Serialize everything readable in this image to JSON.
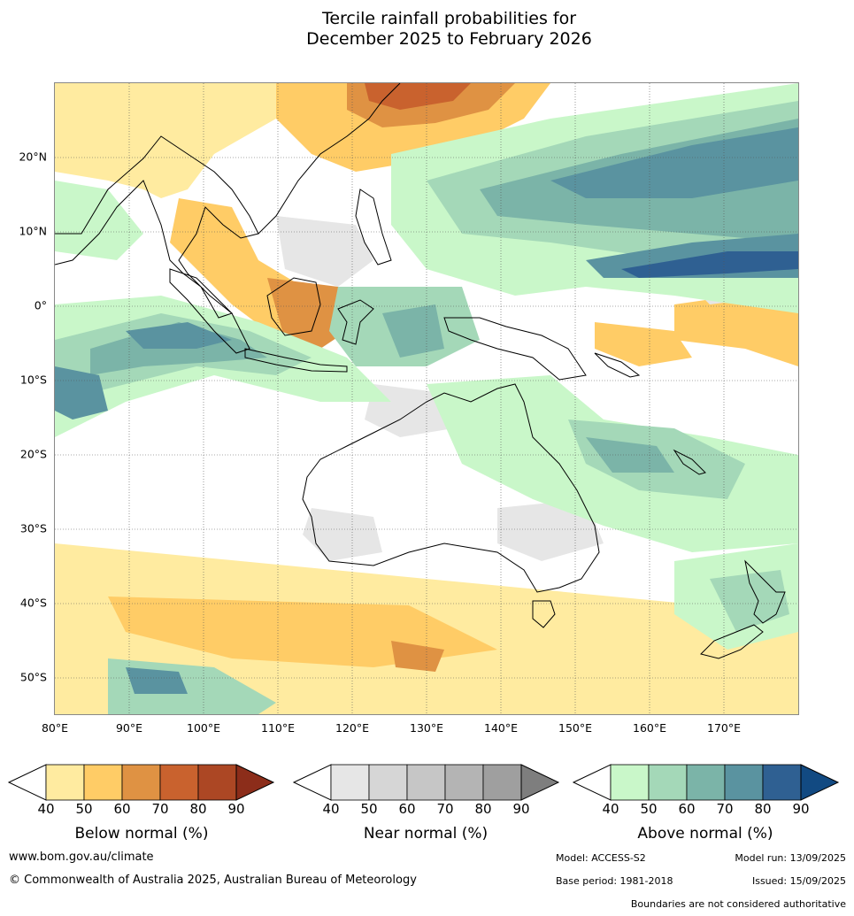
{
  "title_line1": "Tercile rainfall probabilities for",
  "title_line2": "December 2025 to February 2026",
  "map": {
    "lat_labels": [
      "20°N",
      "10°N",
      "0°",
      "10°S",
      "20°S",
      "30°S",
      "40°S",
      "50°S"
    ],
    "lon_labels": [
      "80°E",
      "90°E",
      "100°E",
      "110°E",
      "120°E",
      "130°E",
      "140°E",
      "150°E",
      "160°E",
      "170°E"
    ],
    "extent": {
      "lon_min": 80,
      "lon_max": 180,
      "lat_min": -55,
      "lat_max": 30
    }
  },
  "colorbars": [
    {
      "title": "Below normal (%)",
      "ticks": [
        "40",
        "50",
        "60",
        "70",
        "80",
        "90"
      ],
      "colors": [
        "#ffffff",
        "#ffeba0",
        "#ffcc66",
        "#df9243",
        "#c9622e",
        "#ac4724",
        "#8c2d1a"
      ]
    },
    {
      "title": "Near normal (%)",
      "ticks": [
        "40",
        "50",
        "60",
        "70",
        "80",
        "90"
      ],
      "colors": [
        "#ffffff",
        "#e6e6e6",
        "#d6d6d6",
        "#c6c6c6",
        "#b4b4b4",
        "#9f9f9f",
        "#7e7e7e"
      ]
    },
    {
      "title": "Above normal (%)",
      "ticks": [
        "40",
        "50",
        "60",
        "70",
        "80",
        "90"
      ],
      "colors": [
        "#ffffff",
        "#c9f7c9",
        "#a4d8b8",
        "#7bb4a8",
        "#5a93a0",
        "#2f6092",
        "#124a82"
      ]
    }
  ],
  "footer": {
    "website": "www.bom.gov.au/climate",
    "copyright": "© Commonwealth of Australia 2025, Australian Bureau of Meteorology",
    "model": "Model: ACCESS-S2",
    "model_run": "Model run: 13/09/2025",
    "base_period": "Base period: 1981-2018",
    "issued": "Issued: 15/09/2025",
    "disclaimer": "Boundaries are not considered authoritative"
  }
}
